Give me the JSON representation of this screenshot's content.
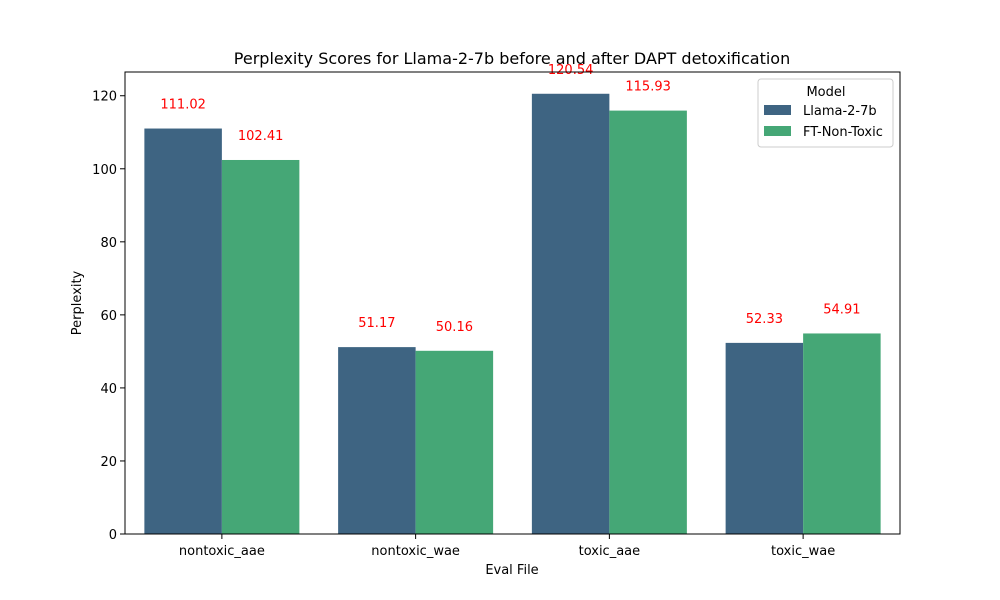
{
  "chart_data": {
    "type": "bar",
    "title": "Perplexity Scores for Llama-2-7b before and after DAPT detoxification",
    "xlabel": "Eval File",
    "ylabel": "Perplexity",
    "categories": [
      "nontoxic_aae",
      "nontoxic_wae",
      "toxic_aae",
      "toxic_wae"
    ],
    "series": [
      {
        "name": "Llama-2-7b",
        "color": "#3e6482",
        "values": [
          111.02,
          51.17,
          120.54,
          52.33
        ]
      },
      {
        "name": "FT-Non-Toxic",
        "color": "#45a776",
        "values": [
          102.41,
          50.16,
          115.93,
          54.91
        ]
      }
    ],
    "data_labels": [
      [
        "111.02",
        "51.17",
        "120.54",
        "52.33"
      ],
      [
        "102.41",
        "50.16",
        "115.93",
        "54.91"
      ]
    ],
    "data_label_color": "#ff0000",
    "ylim": [
      0,
      126.5
    ],
    "yticks": [
      0,
      20,
      40,
      60,
      80,
      100,
      120
    ],
    "grid": false,
    "legend": {
      "title": "Model",
      "placement": "top-right"
    }
  }
}
